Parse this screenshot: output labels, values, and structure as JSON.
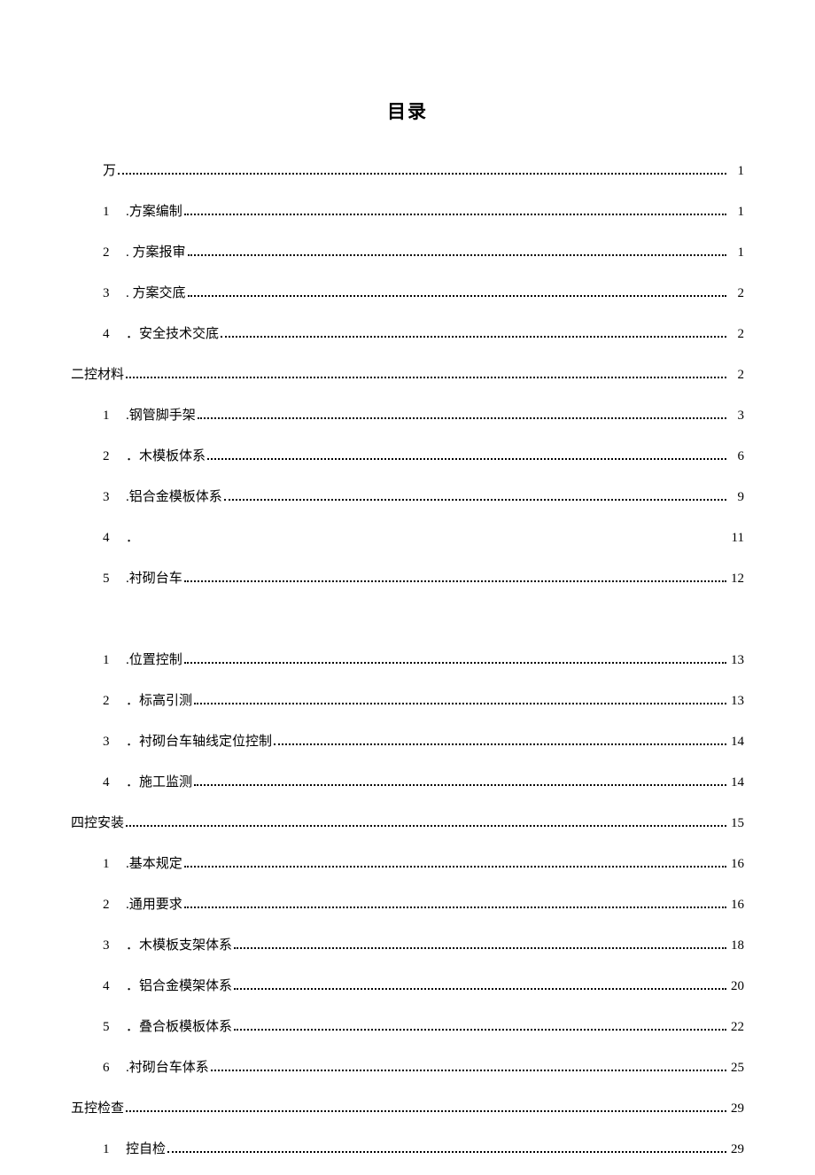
{
  "title": "目录",
  "entries": [
    {
      "level": 2,
      "num": "",
      "label": "万",
      "page": "1",
      "dots": true
    },
    {
      "level": 2,
      "num": "1",
      "label": ".方案编制",
      "page": "1",
      "dots": true
    },
    {
      "level": 2,
      "num": "2",
      "label": ". 方案报审",
      "page": "1",
      "dots": true
    },
    {
      "level": 2,
      "num": "3",
      "label": ". 方案交底",
      "page": "2",
      "dots": true
    },
    {
      "level": 2,
      "num": "4",
      "label": "．安全技术交底",
      "page": "2",
      "dots": true
    },
    {
      "level": 1,
      "num": "",
      "label": "二控材料",
      "page": "2",
      "dots": true
    },
    {
      "level": 2,
      "num": "1",
      "label": ".钢管脚手架",
      "page": "3",
      "dots": true
    },
    {
      "level": 2,
      "num": "2",
      "label": "．木模板体系",
      "page": "6",
      "dots": true
    },
    {
      "level": 2,
      "num": "3",
      "label": ".铝合金模板体系",
      "page": "9",
      "dots": true
    },
    {
      "level": 2,
      "num": "4",
      "label": "．",
      "page": "11",
      "dots": false
    },
    {
      "level": 2,
      "num": "5",
      "label": ".衬砌台车",
      "page": "12",
      "dots": true
    },
    {
      "gap": true
    },
    {
      "level": 2,
      "num": "1",
      "label": ".位置控制",
      "page": "13",
      "dots": true
    },
    {
      "level": 2,
      "num": "2",
      "label": "．标高引测",
      "page": "13",
      "dots": true
    },
    {
      "level": 2,
      "num": "3",
      "label": "．衬砌台车轴线定位控制",
      "page": "14",
      "dots": true
    },
    {
      "level": 2,
      "num": "4",
      "label": "．施工监测",
      "page": "14",
      "dots": true
    },
    {
      "level": 1,
      "num": "",
      "label": "四控安装",
      "page": "15",
      "dots": true
    },
    {
      "level": 2,
      "num": "1",
      "label": ".基本规定",
      "page": "16",
      "dots": true
    },
    {
      "level": 2,
      "num": "2",
      "label": ".通用要求",
      "page": "16",
      "dots": true
    },
    {
      "level": 2,
      "num": "3",
      "label": "．木模板支架体系",
      "page": "18",
      "dots": true
    },
    {
      "level": 2,
      "num": "4",
      "label": "．铝合金模架体系",
      "page": "20",
      "dots": true
    },
    {
      "level": 2,
      "num": "5",
      "label": "．叠合板模板体系",
      "page": "22",
      "dots": true
    },
    {
      "level": 2,
      "num": "6",
      "label": ".衬砌台车体系",
      "page": "25",
      "dots": true
    },
    {
      "level": 1,
      "num": "",
      "label": "五控检查",
      "page": "29",
      "dots": true
    },
    {
      "level": 2,
      "num": "1",
      "label": " 控自检",
      "page": "29",
      "dots": true
    }
  ]
}
